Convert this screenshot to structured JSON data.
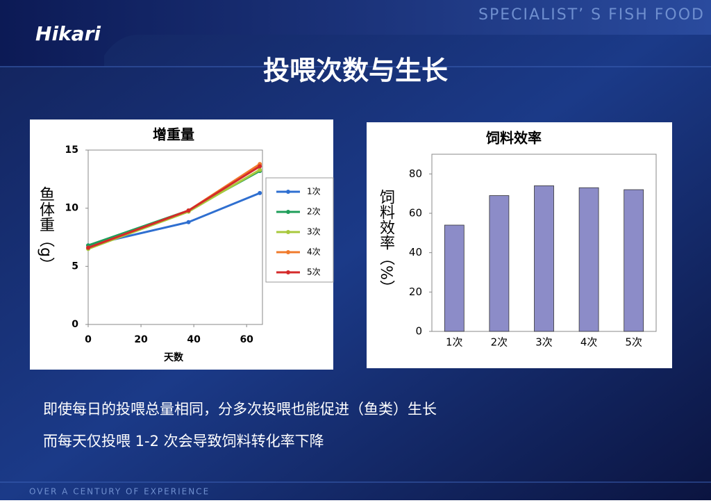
{
  "brand": "Hikari",
  "tagline": "SPECIALIST’ S  FISH FOOD",
  "title": "投喂次数与生长",
  "chart_data": [
    {
      "type": "line",
      "title": "增重量",
      "xlabel": "天数",
      "ylabel": "鱼体重（g）",
      "x": [
        0,
        38,
        65
      ],
      "xlim": [
        0,
        66
      ],
      "xticks": [
        0,
        20,
        40,
        60
      ],
      "ylim": [
        0,
        15
      ],
      "yticks": [
        0,
        5,
        10,
        15
      ],
      "series": [
        {
          "name": "1次",
          "color": "#2f6fd0",
          "values": [
            6.8,
            8.8,
            11.3
          ]
        },
        {
          "name": "2次",
          "color": "#1f9e5a",
          "values": [
            6.8,
            9.8,
            13.2
          ]
        },
        {
          "name": "3次",
          "color": "#a8c83c",
          "values": [
            6.5,
            9.7,
            13.3
          ]
        },
        {
          "name": "4次",
          "color": "#f07b2c",
          "values": [
            6.6,
            9.8,
            13.8
          ]
        },
        {
          "name": "5次",
          "color": "#d42a2a",
          "values": [
            6.6,
            9.8,
            13.6
          ]
        }
      ]
    },
    {
      "type": "bar",
      "title": "饲料效率",
      "ylabel": "饲料效率（%）",
      "color": "#8c8cc8",
      "categories": [
        "1次",
        "2次",
        "3次",
        "4次",
        "5次"
      ],
      "values": [
        54,
        69,
        74,
        73,
        72
      ],
      "ylim": [
        0,
        90
      ],
      "yticks": [
        0,
        20,
        40,
        60,
        80
      ]
    }
  ],
  "captions": [
    "即使每日的投喂总量相同，分多次投喂也能促进（鱼类）生长",
    "而每天仅投喂 1-2 次会导致饲料转化率下降"
  ],
  "footer": "OVER A CENTURY OF EXPERIENCE"
}
